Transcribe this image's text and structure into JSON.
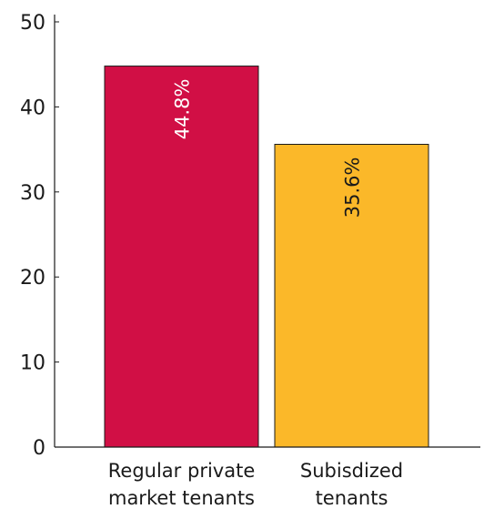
{
  "chart_data": {
    "type": "bar",
    "categories": [
      [
        "Regular private",
        "market tenants"
      ],
      [
        "Subisdized",
        "tenants"
      ]
    ],
    "values": [
      44.8,
      35.6
    ],
    "data_labels": [
      "44.8%",
      "35.6%"
    ],
    "bar_colors": [
      "#d10f45",
      "#fbb829"
    ],
    "data_label_colors": [
      "#ffffff",
      "#1a1a1a"
    ],
    "title": "",
    "xlabel": "",
    "ylabel": "",
    "ylim": [
      0,
      50
    ],
    "yticks": [
      0,
      10,
      20,
      30,
      40,
      50
    ],
    "ytick_labels": [
      "0",
      "10",
      "20",
      "30",
      "40",
      "50"
    ],
    "grid": false,
    "legend": "none"
  }
}
